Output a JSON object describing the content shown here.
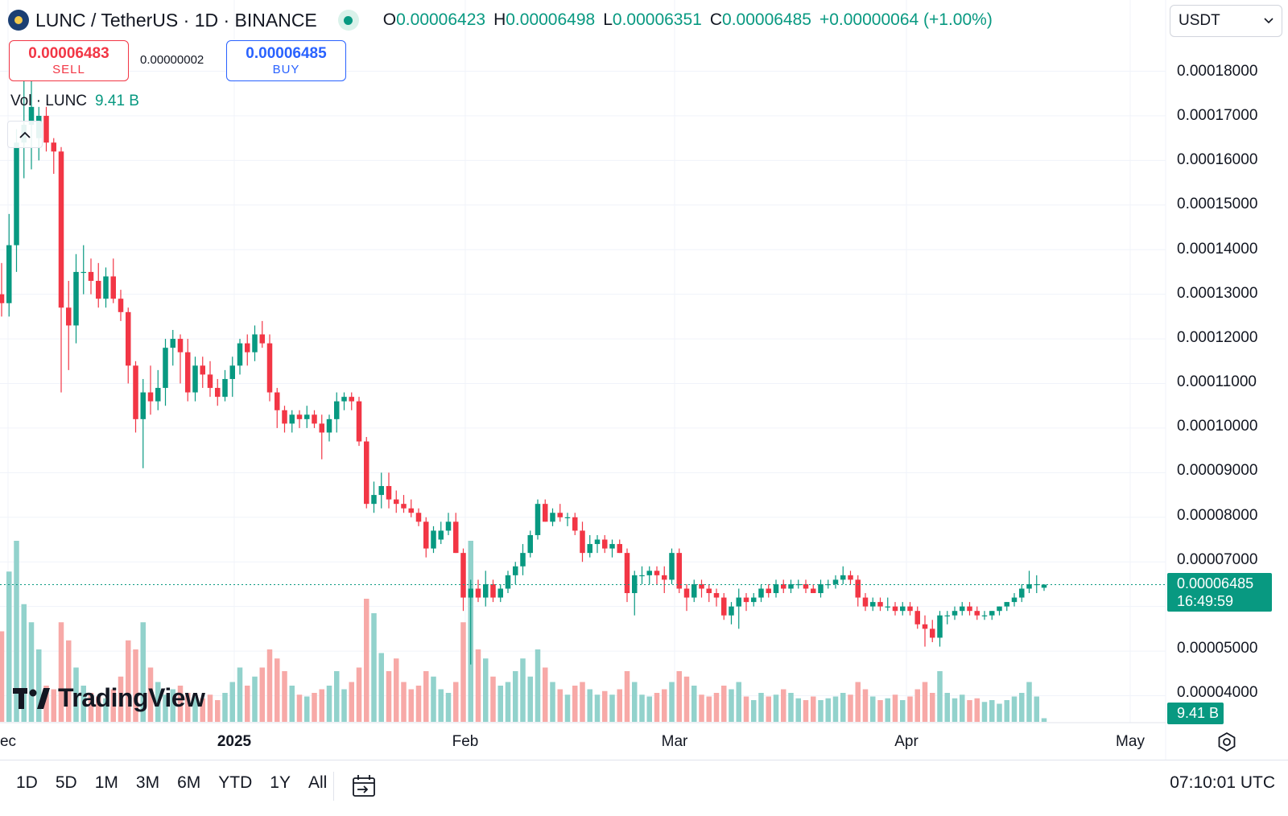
{
  "header": {
    "symbol": "LUNC / TetherUS · 1D · BINANCE",
    "open_key": "O",
    "open": "0.00006423",
    "high_key": "H",
    "high": "0.00006498",
    "low_key": "L",
    "low": "0.00006351",
    "close_key": "C",
    "close": "0.00006485",
    "change": "+0.00000064 (+1.00%)"
  },
  "currency_select": {
    "value": "USDT",
    "icon": "chevron-down-icon"
  },
  "trade": {
    "sell_price": "0.00006483",
    "sell_label": "SELL",
    "spread": "0.00000002",
    "buy_price": "0.00006485",
    "buy_label": "BUY"
  },
  "volume_legend": {
    "label": "Vol · LUNC",
    "value": "9.41 B"
  },
  "price_axis": [
    "0.00018000",
    "0.00017000",
    "0.00016000",
    "0.00015000",
    "0.00014000",
    "0.00013000",
    "0.00012000",
    "0.00011000",
    "0.00010000",
    "0.00009000",
    "0.00008000",
    "0.00007000",
    "0.00005000",
    "0.00004000"
  ],
  "last_price": {
    "price": "0.00006485",
    "countdown": "16:49:59"
  },
  "volume_badge": "9.41 B",
  "time_axis": [
    "ec",
    "2025",
    "Feb",
    "Mar",
    "Apr",
    "May"
  ],
  "logo": "TradingView",
  "ranges": [
    "1D",
    "5D",
    "1M",
    "3M",
    "6M",
    "YTD",
    "1Y",
    "All"
  ],
  "clock": "07:10:01 UTC",
  "colors": {
    "up": "#089981",
    "down": "#f23645",
    "up_volume": "#92d2cc",
    "down_volume": "#f7a9a7",
    "buy": "#2962ff"
  },
  "chart_data": {
    "type": "candlestick",
    "interval": "1D",
    "y_unit": "USDT",
    "candles": [
      {
        "o": 0.00013,
        "h": 0.000137,
        "l": 0.000125,
        "c": 0.000128,
        "v": 0.5
      },
      {
        "o": 0.000128,
        "h": 0.000148,
        "l": 0.000125,
        "c": 0.000141,
        "v": 0.83
      },
      {
        "o": 0.000141,
        "h": 0.000167,
        "l": 0.000135,
        "c": 0.000164,
        "v": 1.0
      },
      {
        "o": 0.000164,
        "h": 0.00018,
        "l": 0.000156,
        "c": 0.000168,
        "v": 0.65
      },
      {
        "o": 0.000168,
        "h": 0.000179,
        "l": 0.000158,
        "c": 0.000172,
        "v": 0.55
      },
      {
        "o": 0.000165,
        "h": 0.000172,
        "l": 0.00016,
        "c": 0.00017,
        "v": 0.4
      },
      {
        "o": 0.00017,
        "h": 0.000172,
        "l": 0.000162,
        "c": 0.000164,
        "v": 0.2
      },
      {
        "o": 0.000164,
        "h": 0.000165,
        "l": 0.000157,
        "c": 0.000162,
        "v": 0.18
      },
      {
        "o": 0.000162,
        "h": 0.000163,
        "l": 0.000108,
        "c": 0.000127,
        "v": 0.55
      },
      {
        "o": 0.000127,
        "h": 0.000133,
        "l": 0.000113,
        "c": 0.000123,
        "v": 0.45
      },
      {
        "o": 0.000123,
        "h": 0.000139,
        "l": 0.000119,
        "c": 0.000135,
        "v": 0.3
      },
      {
        "o": 0.000135,
        "h": 0.000141,
        "l": 0.00013,
        "c": 0.000135,
        "v": 0.2
      },
      {
        "o": 0.000135,
        "h": 0.000138,
        "l": 0.00013,
        "c": 0.000133,
        "v": 0.16
      },
      {
        "o": 0.000133,
        "h": 0.000137,
        "l": 0.000127,
        "c": 0.000129,
        "v": 0.14
      },
      {
        "o": 0.000129,
        "h": 0.000136,
        "l": 0.000127,
        "c": 0.000134,
        "v": 0.13
      },
      {
        "o": 0.000134,
        "h": 0.000138,
        "l": 0.000128,
        "c": 0.000129,
        "v": 0.18
      },
      {
        "o": 0.000129,
        "h": 0.000131,
        "l": 0.000124,
        "c": 0.000126,
        "v": 0.25
      },
      {
        "o": 0.000126,
        "h": 0.000127,
        "l": 0.00011,
        "c": 0.000114,
        "v": 0.45
      },
      {
        "o": 0.000114,
        "h": 0.000115,
        "l": 9.9e-05,
        "c": 0.000102,
        "v": 0.4
      },
      {
        "o": 0.000102,
        "h": 0.000111,
        "l": 9.1e-05,
        "c": 0.000108,
        "v": 0.55
      },
      {
        "o": 0.000108,
        "h": 0.000114,
        "l": 0.000103,
        "c": 0.000106,
        "v": 0.3
      },
      {
        "o": 0.000106,
        "h": 0.000113,
        "l": 0.000104,
        "c": 0.000109,
        "v": 0.22
      },
      {
        "o": 0.000109,
        "h": 0.00012,
        "l": 0.000105,
        "c": 0.000118,
        "v": 0.15
      },
      {
        "o": 0.000118,
        "h": 0.000122,
        "l": 0.000114,
        "c": 0.00012,
        "v": 0.18
      },
      {
        "o": 0.00012,
        "h": 0.000121,
        "l": 0.00011,
        "c": 0.000117,
        "v": 0.2
      },
      {
        "o": 0.000117,
        "h": 0.00012,
        "l": 0.000106,
        "c": 0.000108,
        "v": 0.16
      },
      {
        "o": 0.000108,
        "h": 0.000116,
        "l": 0.000106,
        "c": 0.000114,
        "v": 0.14
      },
      {
        "o": 0.000114,
        "h": 0.000116,
        "l": 0.000109,
        "c": 0.000112,
        "v": 0.13
      },
      {
        "o": 0.000112,
        "h": 0.000115,
        "l": 0.000107,
        "c": 0.000109,
        "v": 0.15
      },
      {
        "o": 0.000109,
        "h": 0.000111,
        "l": 0.000105,
        "c": 0.000107,
        "v": 0.12
      },
      {
        "o": 0.000107,
        "h": 0.000113,
        "l": 0.000106,
        "c": 0.000111,
        "v": 0.16
      },
      {
        "o": 0.000111,
        "h": 0.000116,
        "l": 0.000107,
        "c": 0.000114,
        "v": 0.22
      },
      {
        "o": 0.000114,
        "h": 0.00012,
        "l": 0.000112,
        "c": 0.000119,
        "v": 0.3
      },
      {
        "o": 0.000119,
        "h": 0.000121,
        "l": 0.000114,
        "c": 0.000117,
        "v": 0.2
      },
      {
        "o": 0.000117,
        "h": 0.000123,
        "l": 0.000115,
        "c": 0.000121,
        "v": 0.25
      },
      {
        "o": 0.000121,
        "h": 0.000124,
        "l": 0.000118,
        "c": 0.000119,
        "v": 0.3
      },
      {
        "o": 0.000119,
        "h": 0.000121,
        "l": 0.000106,
        "c": 0.000108,
        "v": 0.4
      },
      {
        "o": 0.000108,
        "h": 0.000109,
        "l": 0.0001,
        "c": 0.000104,
        "v": 0.35
      },
      {
        "o": 0.000104,
        "h": 0.000105,
        "l": 9.9e-05,
        "c": 0.000101,
        "v": 0.28
      },
      {
        "o": 0.000101,
        "h": 0.000104,
        "l": 9.9e-05,
        "c": 0.000103,
        "v": 0.2
      },
      {
        "o": 0.000103,
        "h": 0.000104,
        "l": 0.0001,
        "c": 0.000102,
        "v": 0.15
      },
      {
        "o": 0.000102,
        "h": 0.000105,
        "l": 0.0001,
        "c": 0.000103,
        "v": 0.14
      },
      {
        "o": 0.000103,
        "h": 0.000104,
        "l": 0.0001,
        "c": 0.000101,
        "v": 0.16
      },
      {
        "o": 0.000101,
        "h": 0.000103,
        "l": 9.3e-05,
        "c": 9.9e-05,
        "v": 0.18
      },
      {
        "o": 9.9e-05,
        "h": 0.000103,
        "l": 9.7e-05,
        "c": 0.000102,
        "v": 0.2
      },
      {
        "o": 0.000102,
        "h": 0.000108,
        "l": 9.9e-05,
        "c": 0.000106,
        "v": 0.28
      },
      {
        "o": 0.000106,
        "h": 0.000108,
        "l": 0.000104,
        "c": 0.000107,
        "v": 0.18
      },
      {
        "o": 0.000107,
        "h": 0.000108,
        "l": 0.000104,
        "c": 0.000106,
        "v": 0.22
      },
      {
        "o": 0.000106,
        "h": 0.000107,
        "l": 9.6e-05,
        "c": 9.7e-05,
        "v": 0.3
      },
      {
        "o": 9.7e-05,
        "h": 9.8e-05,
        "l": 8.2e-05,
        "c": 8.3e-05,
        "v": 0.68
      },
      {
        "o": 8.3e-05,
        "h": 8.8e-05,
        "l": 8.1e-05,
        "c": 8.5e-05,
        "v": 0.6
      },
      {
        "o": 8.5e-05,
        "h": 9e-05,
        "l": 8.2e-05,
        "c": 8.7e-05,
        "v": 0.38
      },
      {
        "o": 8.7e-05,
        "h": 9e-05,
        "l": 8.2e-05,
        "c": 8.4e-05,
        "v": 0.28
      },
      {
        "o": 8.4e-05,
        "h": 8.6e-05,
        "l": 8.1e-05,
        "c": 8.3e-05,
        "v": 0.35
      },
      {
        "o": 8.3e-05,
        "h": 8.5e-05,
        "l": 8.1e-05,
        "c": 8.2e-05,
        "v": 0.22
      },
      {
        "o": 8.2e-05,
        "h": 8.4e-05,
        "l": 8e-05,
        "c": 8.1e-05,
        "v": 0.18
      },
      {
        "o": 8.1e-05,
        "h": 8.2e-05,
        "l": 7.8e-05,
        "c": 7.9e-05,
        "v": 0.2
      },
      {
        "o": 7.9e-05,
        "h": 8e-05,
        "l": 7.1e-05,
        "c": 7.3e-05,
        "v": 0.28
      },
      {
        "o": 7.3e-05,
        "h": 7.8e-05,
        "l": 7.2e-05,
        "c": 7.7e-05,
        "v": 0.25
      },
      {
        "o": 7.5e-05,
        "h": 7.9e-05,
        "l": 7.4e-05,
        "c": 7.7e-05,
        "v": 0.18
      },
      {
        "o": 7.7e-05,
        "h": 8.1e-05,
        "l": 7.6e-05,
        "c": 7.9e-05,
        "v": 0.16
      },
      {
        "o": 7.9e-05,
        "h": 8.1e-05,
        "l": 7.2e-05,
        "c": 7.2e-05,
        "v": 0.22
      },
      {
        "o": 7.2e-05,
        "h": 7.3e-05,
        "l": 5.9e-05,
        "c": 6.2e-05,
        "v": 0.55
      },
      {
        "o": 6.2e-05,
        "h": 6.6e-05,
        "l": 4.7e-05,
        "c": 6.4e-05,
        "v": 1.0
      },
      {
        "o": 6.4e-05,
        "h": 6.6e-05,
        "l": 6.1e-05,
        "c": 6.2e-05,
        "v": 0.4
      },
      {
        "o": 6.2e-05,
        "h": 6.8e-05,
        "l": 6e-05,
        "c": 6.5e-05,
        "v": 0.35
      },
      {
        "o": 6.5e-05,
        "h": 6.6e-05,
        "l": 6.1e-05,
        "c": 6.2e-05,
        "v": 0.25
      },
      {
        "o": 6.2e-05,
        "h": 6.5e-05,
        "l": 6.1e-05,
        "c": 6.4e-05,
        "v": 0.2
      },
      {
        "o": 6.4e-05,
        "h": 6.8e-05,
        "l": 6.3e-05,
        "c": 6.7e-05,
        "v": 0.22
      },
      {
        "o": 6.7e-05,
        "h": 7e-05,
        "l": 6.5e-05,
        "c": 6.9e-05,
        "v": 0.28
      },
      {
        "o": 6.9e-05,
        "h": 7.4e-05,
        "l": 6.7e-05,
        "c": 7.2e-05,
        "v": 0.35
      },
      {
        "o": 7.2e-05,
        "h": 7.7e-05,
        "l": 7.1e-05,
        "c": 7.6e-05,
        "v": 0.25
      },
      {
        "o": 7.6e-05,
        "h": 8.4e-05,
        "l": 7.5e-05,
        "c": 8.3e-05,
        "v": 0.4
      },
      {
        "o": 8.3e-05,
        "h": 8.4e-05,
        "l": 7.9e-05,
        "c": 7.9e-05,
        "v": 0.3
      },
      {
        "o": 7.9e-05,
        "h": 8.2e-05,
        "l": 7.8e-05,
        "c": 8.1e-05,
        "v": 0.22
      },
      {
        "o": 8.1e-05,
        "h": 8.3e-05,
        "l": 7.9e-05,
        "c": 8e-05,
        "v": 0.18
      },
      {
        "o": 8e-05,
        "h": 8.1e-05,
        "l": 7.8e-05,
        "c": 8e-05,
        "v": 0.15
      },
      {
        "o": 8e-05,
        "h": 8.1e-05,
        "l": 7.6e-05,
        "c": 7.7e-05,
        "v": 0.2
      },
      {
        "o": 7.7e-05,
        "h": 7.9e-05,
        "l": 7e-05,
        "c": 7.2e-05,
        "v": 0.22
      },
      {
        "o": 7.2e-05,
        "h": 7.6e-05,
        "l": 7.1e-05,
        "c": 7.4e-05,
        "v": 0.18
      },
      {
        "o": 7.4e-05,
        "h": 7.6e-05,
        "l": 7.2e-05,
        "c": 7.5e-05,
        "v": 0.15
      },
      {
        "o": 7.5e-05,
        "h": 7.6e-05,
        "l": 7.2e-05,
        "c": 7.3e-05,
        "v": 0.17
      },
      {
        "o": 7.3e-05,
        "h": 7.5e-05,
        "l": 7.1e-05,
        "c": 7.4e-05,
        "v": 0.15
      },
      {
        "o": 7.4e-05,
        "h": 7.5e-05,
        "l": 7.2e-05,
        "c": 7.2e-05,
        "v": 0.18
      },
      {
        "o": 7.2e-05,
        "h": 7.3e-05,
        "l": 6.1e-05,
        "c": 6.3e-05,
        "v": 0.28
      },
      {
        "o": 6.3e-05,
        "h": 6.8e-05,
        "l": 5.8e-05,
        "c": 6.7e-05,
        "v": 0.22
      },
      {
        "o": 6.7e-05,
        "h": 6.9e-05,
        "l": 6.5e-05,
        "c": 6.7e-05,
        "v": 0.15
      },
      {
        "o": 6.7e-05,
        "h": 6.9e-05,
        "l": 6.5e-05,
        "c": 6.8e-05,
        "v": 0.14
      },
      {
        "o": 6.8e-05,
        "h": 6.9e-05,
        "l": 6.5e-05,
        "c": 6.7e-05,
        "v": 0.16
      },
      {
        "o": 6.7e-05,
        "h": 6.9e-05,
        "l": 6.3e-05,
        "c": 6.6e-05,
        "v": 0.18
      },
      {
        "o": 6.6e-05,
        "h": 7.3e-05,
        "l": 6.5e-05,
        "c": 7.2e-05,
        "v": 0.22
      },
      {
        "o": 7.2e-05,
        "h": 7.3e-05,
        "l": 6.3e-05,
        "c": 6.4e-05,
        "v": 0.28
      },
      {
        "o": 6.4e-05,
        "h": 6.5e-05,
        "l": 5.9e-05,
        "c": 6.2e-05,
        "v": 0.25
      },
      {
        "o": 6.2e-05,
        "h": 6.6e-05,
        "l": 6.1e-05,
        "c": 6.5e-05,
        "v": 0.2
      },
      {
        "o": 6.5e-05,
        "h": 6.6e-05,
        "l": 6.2e-05,
        "c": 6.4e-05,
        "v": 0.15
      },
      {
        "o": 6.4e-05,
        "h": 6.5e-05,
        "l": 6.1e-05,
        "c": 6.3e-05,
        "v": 0.14
      },
      {
        "o": 6.3e-05,
        "h": 6.4e-05,
        "l": 6e-05,
        "c": 6.2e-05,
        "v": 0.16
      },
      {
        "o": 6.2e-05,
        "h": 6.3e-05,
        "l": 5.7e-05,
        "c": 5.8e-05,
        "v": 0.2
      },
      {
        "o": 5.8e-05,
        "h": 6.1e-05,
        "l": 5.6e-05,
        "c": 6e-05,
        "v": 0.18
      },
      {
        "o": 6e-05,
        "h": 6.4e-05,
        "l": 5.5e-05,
        "c": 6.2e-05,
        "v": 0.22
      },
      {
        "o": 6.2e-05,
        "h": 6.3e-05,
        "l": 5.9e-05,
        "c": 6.1e-05,
        "v": 0.14
      },
      {
        "o": 6.1e-05,
        "h": 6.3e-05,
        "l": 6e-05,
        "c": 6.2e-05,
        "v": 0.12
      },
      {
        "o": 6.2e-05,
        "h": 6.5e-05,
        "l": 6.1e-05,
        "c": 6.4e-05,
        "v": 0.16
      },
      {
        "o": 6.4e-05,
        "h": 6.5e-05,
        "l": 6.2e-05,
        "c": 6.3e-05,
        "v": 0.14
      },
      {
        "o": 6.3e-05,
        "h": 6.6e-05,
        "l": 6.2e-05,
        "c": 6.5e-05,
        "v": 0.15
      },
      {
        "o": 6.5e-05,
        "h": 6.6e-05,
        "l": 6.3e-05,
        "c": 6.4e-05,
        "v": 0.18
      },
      {
        "o": 6.4e-05,
        "h": 6.6e-05,
        "l": 6.3e-05,
        "c": 6.5e-05,
        "v": 0.16
      },
      {
        "o": 6.5e-05,
        "h": 6.6e-05,
        "l": 6.4e-05,
        "c": 6.5e-05,
        "v": 0.13
      },
      {
        "o": 6.5e-05,
        "h": 6.6e-05,
        "l": 6.3e-05,
        "c": 6.4e-05,
        "v": 0.12
      },
      {
        "o": 6.4e-05,
        "h": 6.5e-05,
        "l": 6.3e-05,
        "c": 6.3e-05,
        "v": 0.14
      },
      {
        "o": 6.3e-05,
        "h": 6.6e-05,
        "l": 6.2e-05,
        "c": 6.5e-05,
        "v": 0.12
      },
      {
        "o": 6.5e-05,
        "h": 6.6e-05,
        "l": 6.4e-05,
        "c": 6.5e-05,
        "v": 0.13
      },
      {
        "o": 6.5e-05,
        "h": 6.7e-05,
        "l": 6.4e-05,
        "c": 6.6e-05,
        "v": 0.14
      },
      {
        "o": 6.6e-05,
        "h": 6.9e-05,
        "l": 6.5e-05,
        "c": 6.7e-05,
        "v": 0.16
      },
      {
        "o": 6.7e-05,
        "h": 6.8e-05,
        "l": 6.5e-05,
        "c": 6.6e-05,
        "v": 0.15
      },
      {
        "o": 6.6e-05,
        "h": 6.7e-05,
        "l": 6e-05,
        "c": 6.2e-05,
        "v": 0.22
      },
      {
        "o": 6.2e-05,
        "h": 6.3e-05,
        "l": 5.9e-05,
        "c": 6e-05,
        "v": 0.18
      },
      {
        "o": 6e-05,
        "h": 6.2e-05,
        "l": 5.9e-05,
        "c": 6.1e-05,
        "v": 0.14
      },
      {
        "o": 6.1e-05,
        "h": 6.2e-05,
        "l": 5.9e-05,
        "c": 6e-05,
        "v": 0.12
      },
      {
        "o": 6e-05,
        "h": 6.2e-05,
        "l": 5.9e-05,
        "c": 6e-05,
        "v": 0.13
      },
      {
        "o": 6e-05,
        "h": 6.1e-05,
        "l": 5.8e-05,
        "c": 5.9e-05,
        "v": 0.15
      },
      {
        "o": 5.9e-05,
        "h": 6.1e-05,
        "l": 5.8e-05,
        "c": 6e-05,
        "v": 0.12
      },
      {
        "o": 6e-05,
        "h": 6.1e-05,
        "l": 5.8e-05,
        "c": 5.9e-05,
        "v": 0.14
      },
      {
        "o": 5.9e-05,
        "h": 6e-05,
        "l": 5.5e-05,
        "c": 5.6e-05,
        "v": 0.18
      },
      {
        "o": 5.6e-05,
        "h": 5.8e-05,
        "l": 5.1e-05,
        "c": 5.5e-05,
        "v": 0.22
      },
      {
        "o": 5.5e-05,
        "h": 5.7e-05,
        "l": 5.2e-05,
        "c": 5.3e-05,
        "v": 0.16
      },
      {
        "o": 5.3e-05,
        "h": 5.9e-05,
        "l": 5.1e-05,
        "c": 5.8e-05,
        "v": 0.28
      },
      {
        "o": 5.8e-05,
        "h": 5.9e-05,
        "l": 5.6e-05,
        "c": 5.8e-05,
        "v": 0.16
      },
      {
        "o": 5.8e-05,
        "h": 6e-05,
        "l": 5.7e-05,
        "c": 5.9e-05,
        "v": 0.13
      },
      {
        "o": 5.9e-05,
        "h": 6.1e-05,
        "l": 5.8e-05,
        "c": 6e-05,
        "v": 0.15
      },
      {
        "o": 6e-05,
        "h": 6.1e-05,
        "l": 5.8e-05,
        "c": 5.9e-05,
        "v": 0.12
      },
      {
        "o": 5.9e-05,
        "h": 6e-05,
        "l": 5.7e-05,
        "c": 5.8e-05,
        "v": 0.13
      },
      {
        "o": 5.8e-05,
        "h": 5.9e-05,
        "l": 5.7e-05,
        "c": 5.8e-05,
        "v": 0.11
      },
      {
        "o": 5.8e-05,
        "h": 5.9e-05,
        "l": 5.7e-05,
        "c": 5.9e-05,
        "v": 0.12
      },
      {
        "o": 5.9e-05,
        "h": 6e-05,
        "l": 5.8e-05,
        "c": 6e-05,
        "v": 0.1
      },
      {
        "o": 6e-05,
        "h": 6.1e-05,
        "l": 5.9e-05,
        "c": 6.1e-05,
        "v": 0.12
      },
      {
        "o": 6.1e-05,
        "h": 6.3e-05,
        "l": 6e-05,
        "c": 6.2e-05,
        "v": 0.14
      },
      {
        "o": 6.2e-05,
        "h": 6.5e-05,
        "l": 6.1e-05,
        "c": 6.4e-05,
        "v": 0.16
      },
      {
        "o": 6.4e-05,
        "h": 6.8e-05,
        "l": 6.3e-05,
        "c": 6.5e-05,
        "v": 0.22
      },
      {
        "o": 6.5e-05,
        "h": 6.7e-05,
        "l": 6.3e-05,
        "c": 6.5e-05,
        "v": 0.14
      },
      {
        "o": 6.42e-05,
        "h": 6.5e-05,
        "l": 6.35e-05,
        "c": 6.49e-05,
        "v": 0.02
      }
    ]
  }
}
